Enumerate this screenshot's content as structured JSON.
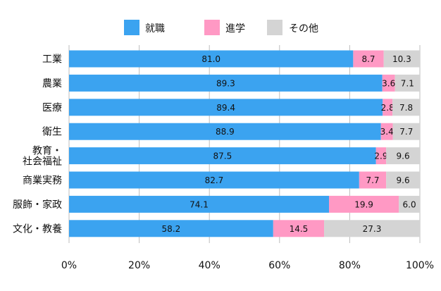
{
  "chart_data": {
    "type": "bar",
    "orientation": "horizontal",
    "stacked": true,
    "categories": [
      "工業",
      "農業",
      "医療",
      "衛生",
      "教育・\n社会福祉",
      "商業実務",
      "服飾・家政",
      "文化・教養"
    ],
    "series": [
      {
        "name": "就職",
        "color": "#3ba3f0",
        "values": [
          81.0,
          89.3,
          89.4,
          88.9,
          87.5,
          82.7,
          74.1,
          58.2
        ]
      },
      {
        "name": "進学",
        "color": "#ff99c4",
        "values": [
          8.7,
          3.6,
          2.8,
          3.4,
          2.9,
          7.7,
          19.9,
          14.5
        ]
      },
      {
        "name": "その他",
        "color": "#d4d4d4",
        "values": [
          10.3,
          7.1,
          7.8,
          7.7,
          9.6,
          9.6,
          6.0,
          27.3
        ]
      }
    ],
    "xticks": [
      "0%",
      "20%",
      "40%",
      "60%",
      "80%",
      "100%"
    ],
    "xlim": [
      0,
      100
    ],
    "legend": "top-center",
    "grid": "vertical"
  }
}
